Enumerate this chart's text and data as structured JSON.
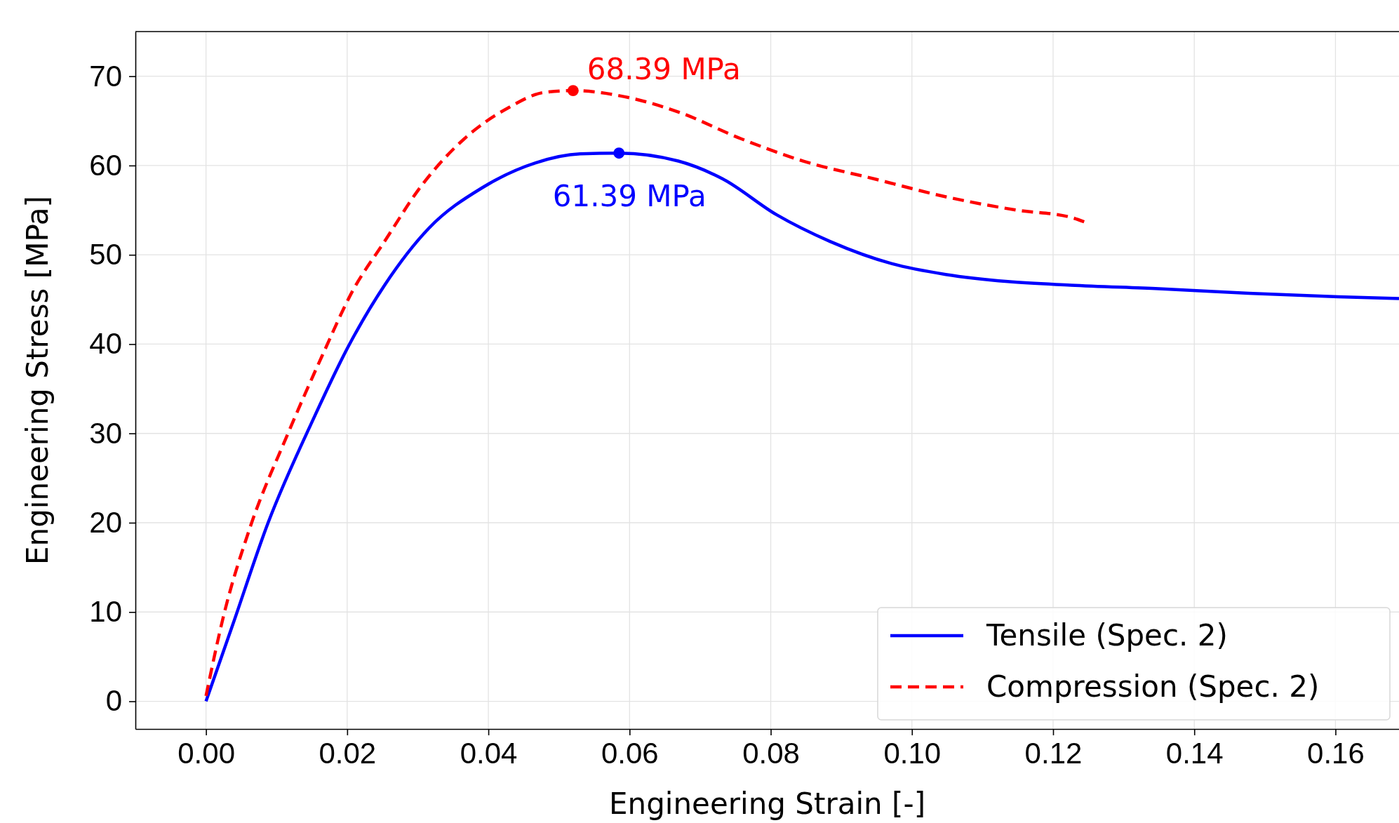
{
  "chart_data": {
    "type": "line",
    "xlabel": "Engineering Strain [-]",
    "ylabel": "Engineering Stress [MPa]",
    "xlim": [
      -0.01,
      0.169
    ],
    "ylim": [
      -3.1,
      75
    ],
    "xticks": [
      {
        "value": 0,
        "label": "0.00"
      },
      {
        "value": 0.02,
        "label": "0.02"
      },
      {
        "value": 0.04,
        "label": "0.04"
      },
      {
        "value": 0.06,
        "label": "0.06"
      },
      {
        "value": 0.08,
        "label": "0.08"
      },
      {
        "value": 0.1,
        "label": "0.10"
      },
      {
        "value": 0.12,
        "label": "0.12"
      },
      {
        "value": 0.14,
        "label": "0.14"
      },
      {
        "value": 0.16,
        "label": "0.16"
      }
    ],
    "yticks": [
      0,
      10,
      20,
      30,
      40,
      50,
      60,
      70
    ],
    "grid": true,
    "legend": "bottom right",
    "series": [
      {
        "name": "Tensile (Spec. 2)",
        "color": "#0000ff",
        "line_style": "solid",
        "marker": "none",
        "x": [
          0,
          0.0038,
          0.0088,
          0.0152,
          0.0202,
          0.0253,
          0.0316,
          0.0391,
          0.0467,
          0.053,
          0.0585,
          0.0669,
          0.0732,
          0.0808,
          0.0884,
          0.0972,
          0.1048,
          0.1136,
          0.1225,
          0.135,
          0.1477,
          0.1604,
          0.169
        ],
        "values": [
          0,
          8.6,
          20,
          31.6,
          39.8,
          46.6,
          53,
          57.5,
          60.3,
          61.3,
          61.39,
          60.5,
          58.5,
          54.5,
          51.5,
          49,
          47.8,
          47,
          46.6,
          46.2,
          45.7,
          45.3,
          45.1
        ]
      },
      {
        "name": "Compression (Spec. 2)",
        "color": "#ff0000",
        "line_style": "dashed",
        "marker": "none",
        "x": [
          0,
          0.0025,
          0.0063,
          0.0114,
          0.0164,
          0.0208,
          0.0253,
          0.0303,
          0.0366,
          0.0429,
          0.048,
          0.052,
          0.0593,
          0.0669,
          0.0758,
          0.0846,
          0.0947,
          0.1048,
          0.1149,
          0.1225,
          0.1244
        ],
        "values": [
          0.6,
          9.6,
          19.6,
          29.6,
          38.6,
          46,
          51.5,
          57.5,
          63,
          66.5,
          68.2,
          68.39,
          67.7,
          66,
          63,
          60.5,
          58.5,
          56.5,
          55,
          54.2,
          53.7
        ]
      },
      {
        "type": "scatter",
        "color": "#0000ff",
        "marker": "circle",
        "x": [
          0.0585
        ],
        "values": [
          61.39
        ]
      },
      {
        "type": "scatter",
        "color": "#ff0000",
        "marker": "circle",
        "x": [
          0.052
        ],
        "values": [
          68.39
        ]
      }
    ],
    "annotations": [
      {
        "text": "61.39 MPa",
        "x": 0.0585,
        "y": 61.39
      },
      {
        "text": "68.39 MPa",
        "x": 0.052,
        "y": 68.39
      }
    ]
  }
}
